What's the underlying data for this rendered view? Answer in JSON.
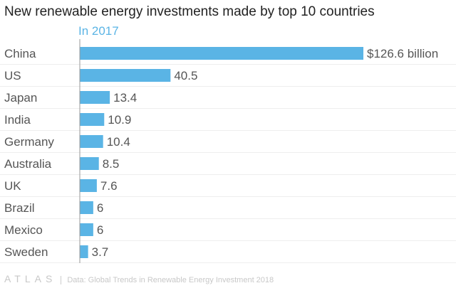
{
  "chart_data": {
    "type": "bar",
    "orientation": "horizontal",
    "title": "New renewable energy investments made by top 10 countries",
    "subtitle": "In 2017",
    "categories": [
      "China",
      "US",
      "Japan",
      "India",
      "Germany",
      "Australia",
      "UK",
      "Brazil",
      "Mexico",
      "Sweden"
    ],
    "values": [
      126.6,
      40.5,
      13.4,
      10.9,
      10.4,
      8.5,
      7.6,
      6,
      6,
      3.7
    ],
    "value_labels": [
      "$126.6 billion",
      "40.5",
      "13.4",
      "10.9",
      "10.4",
      "8.5",
      "7.6",
      "6",
      "6",
      "3.7"
    ],
    "unit": "$ billion",
    "xlim": [
      0,
      126.6
    ],
    "bar_color": "#5ab4e5",
    "grid": true
  },
  "footer": {
    "logo": "ATLAS",
    "source": "Data: Global Trends in Renewable Energy Investment 2018"
  }
}
